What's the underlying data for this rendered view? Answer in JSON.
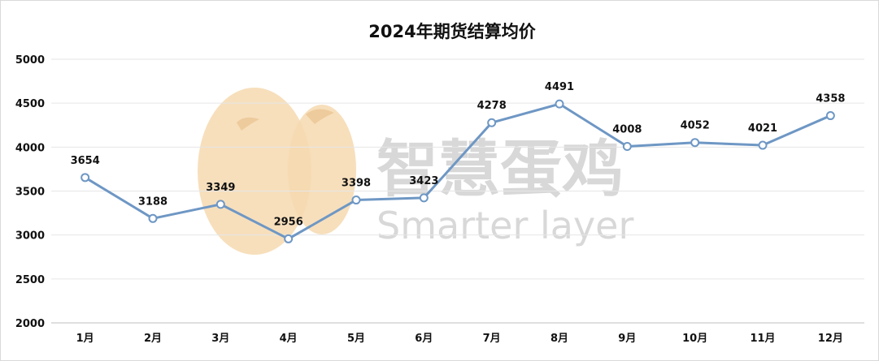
{
  "chart_data": {
    "type": "line",
    "title": "2024年期货结算均价",
    "categories": [
      "1月",
      "2月",
      "3月",
      "4月",
      "5月",
      "6月",
      "7月",
      "8月",
      "9月",
      "10月",
      "11月",
      "12月"
    ],
    "series": [
      {
        "values": [
          3654,
          3188,
          3349,
          2956,
          3398,
          3423,
          4278,
          4491,
          4008,
          4052,
          4021,
          4358
        ]
      }
    ],
    "ylim": [
      2000,
      5000
    ],
    "yticks": [
      2000,
      2500,
      3000,
      3500,
      4000,
      4500,
      5000
    ],
    "grid": true,
    "line_color": "#6e97c4",
    "marker_fill": "#ffffff"
  },
  "watermark": {
    "cn": "智慧蛋鸡",
    "en": "Smarter layer",
    "logo_icon": "hen-logo-icon",
    "logo_color": "#f6d9b0",
    "text_color": "#d8d8d8"
  }
}
